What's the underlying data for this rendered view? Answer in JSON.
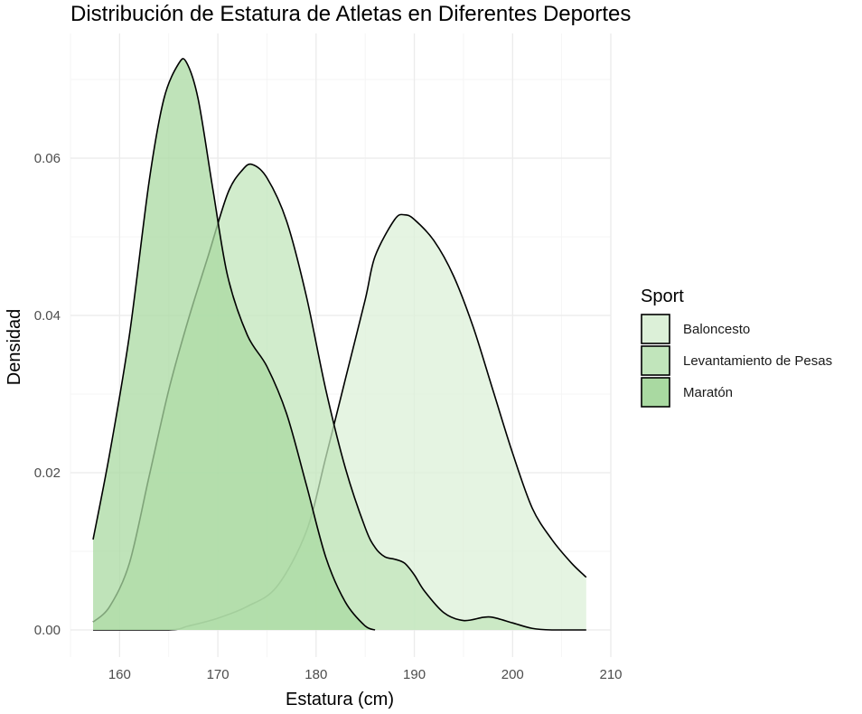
{
  "chart_data": {
    "type": "area",
    "subtype": "density",
    "title": "Distribución de Estatura de Atletas en Diferentes Deportes",
    "xlabel": "Estatura (cm)",
    "ylabel": "Densidad",
    "xlim": [
      155,
      210
    ],
    "ylim": [
      0,
      0.072
    ],
    "x_ticks": [
      "160",
      "170",
      "180",
      "190",
      "200",
      "210"
    ],
    "y_ticks": [
      "0.00",
      "0.02",
      "0.04",
      "0.06"
    ],
    "x_tick_values": [
      160,
      170,
      180,
      190,
      200,
      210
    ],
    "y_tick_values": [
      0,
      0.02,
      0.04,
      0.06
    ],
    "grid": true,
    "legend": {
      "title": "Sport",
      "position": "right"
    },
    "series": [
      {
        "name": "Baloncesto",
        "color": "#dcf0d8",
        "x": [
          157.3,
          165,
          167,
          170,
          173,
          176,
          179,
          181,
          183,
          185,
          186,
          188,
          189,
          190,
          192,
          194,
          196,
          198,
          200,
          202,
          204,
          206,
          207.5
        ],
        "y": [
          0.0,
          0.0,
          0.0005,
          0.0015,
          0.003,
          0.0055,
          0.0125,
          0.022,
          0.032,
          0.042,
          0.0475,
          0.0522,
          0.0528,
          0.0522,
          0.0495,
          0.045,
          0.0385,
          0.0305,
          0.0225,
          0.0155,
          0.0115,
          0.0085,
          0.0067
        ]
      },
      {
        "name": "Levantamiento de Pesas",
        "color": "#c1e5bb",
        "x": [
          157.3,
          159,
          161,
          163,
          165,
          167,
          169,
          171,
          172.5,
          173.5,
          175,
          177,
          179,
          181,
          183,
          185,
          186,
          187,
          188,
          189,
          190,
          191,
          193,
          195,
          197,
          198,
          200,
          202,
          204,
          207.5
        ],
        "y": [
          0.001,
          0.003,
          0.0085,
          0.0195,
          0.0305,
          0.0395,
          0.0475,
          0.0555,
          0.0585,
          0.0592,
          0.0575,
          0.052,
          0.0425,
          0.0305,
          0.0205,
          0.013,
          0.0105,
          0.0093,
          0.009,
          0.0085,
          0.007,
          0.005,
          0.0022,
          0.0012,
          0.0016,
          0.0016,
          0.0009,
          0.0002,
          0.0,
          0.0
        ]
      },
      {
        "name": "Maratón",
        "color": "#a9d9a1",
        "x": [
          157.3,
          159,
          161,
          163,
          164.5,
          166,
          166.8,
          168,
          169.5,
          171,
          173,
          175,
          177,
          179,
          181,
          183,
          185,
          186
        ],
        "y": [
          0.0115,
          0.0225,
          0.0375,
          0.057,
          0.0675,
          0.072,
          0.0722,
          0.0675,
          0.056,
          0.045,
          0.0375,
          0.0335,
          0.0275,
          0.0185,
          0.0092,
          0.0035,
          0.0005,
          0.0
        ]
      }
    ]
  }
}
